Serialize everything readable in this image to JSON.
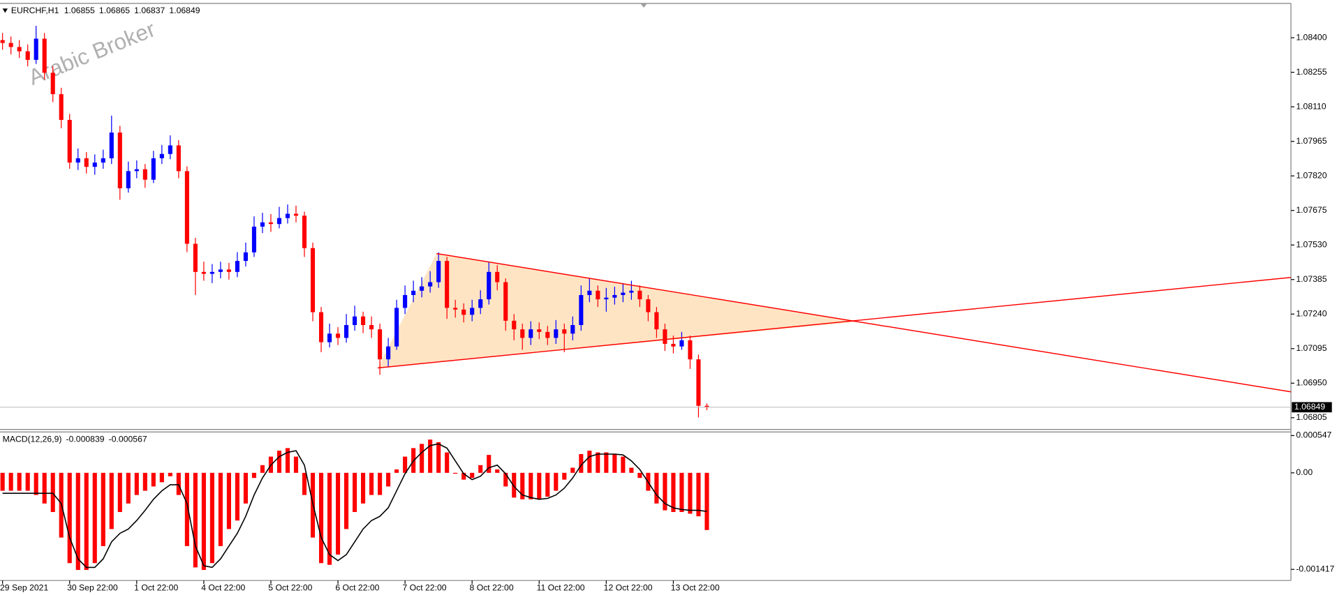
{
  "chart_data": [
    {
      "type": "candlestick",
      "symbol": "EURCHF,H1",
      "watermark": "Arabic Broker",
      "up_color": "#0000ff",
      "down_color": "#ff0000",
      "last_price_color": "#c0c0c0",
      "ylim": [
        1.06756,
        1.08544
      ],
      "yticks": [
        {
          "value": 1.084,
          "label": "1.08400"
        },
        1.08255,
        {
          "value": 1.0811,
          "label": "1.08110"
        },
        1.07965,
        {
          "value": 1.0782,
          "label": "1.07820"
        },
        1.07675,
        {
          "value": 1.0753,
          "label": "1.07530"
        },
        1.07385,
        {
          "value": 1.0724,
          "label": "1.07240"
        },
        1.07095,
        {
          "value": 1.0695,
          "label": "1.06950"
        },
        1.06805
      ],
      "categories": [
        "29 Sep 2021",
        null,
        null,
        null,
        null,
        null,
        null,
        null,
        "30 Sep 22:00",
        null,
        null,
        null,
        null,
        null,
        null,
        null,
        "1 Oct 22:00",
        null,
        null,
        null,
        null,
        null,
        null,
        null,
        "4 Oct 22:00",
        null,
        null,
        null,
        null,
        null,
        null,
        null,
        "5 Oct 22:00",
        null,
        null,
        null,
        null,
        null,
        null,
        null,
        "6 Oct 22:00",
        null,
        null,
        null,
        null,
        null,
        null,
        null,
        "7 Oct 22:00",
        null,
        null,
        null,
        null,
        null,
        null,
        null,
        "8 Oct 22:00",
        null,
        null,
        null,
        null,
        null,
        null,
        null,
        "11 Oct 22:00",
        null,
        null,
        null,
        null,
        null,
        null,
        null,
        "12 Oct 22:00",
        null,
        null,
        null,
        null,
        null,
        null,
        null,
        "13 Oct 22:00",
        null,
        null,
        null,
        null
      ],
      "ohlc": [
        [
          1.0839,
          1.0842,
          1.0835,
          1.08378
        ],
        [
          1.08378,
          1.08405,
          1.0833,
          1.08361
        ],
        [
          1.08361,
          1.0839,
          1.08315,
          1.08343
        ],
        [
          1.08343,
          1.08372,
          1.0828,
          1.08307
        ],
        [
          1.08307,
          1.0845,
          1.0829,
          1.08396
        ],
        [
          1.08396,
          1.0842,
          1.08225,
          1.08253
        ],
        [
          1.08253,
          1.0828,
          1.0813,
          1.08163
        ],
        [
          1.08163,
          1.0819,
          1.0802,
          1.08055
        ],
        [
          1.08055,
          1.0808,
          1.0785,
          1.07876
        ],
        [
          1.07876,
          1.07935,
          1.07845,
          1.07894
        ],
        [
          1.07894,
          1.0792,
          1.0783,
          1.07858
        ],
        [
          1.07858,
          1.0791,
          1.07825,
          1.07876
        ],
        [
          1.07876,
          1.0793,
          1.0785,
          1.07894
        ],
        [
          1.07894,
          1.08073,
          1.0787,
          1.08002
        ],
        [
          1.08002,
          1.0803,
          1.0772,
          1.07768
        ],
        [
          1.07768,
          1.0788,
          1.0775,
          1.0784
        ],
        [
          1.0784,
          1.07885,
          1.0781,
          1.07848
        ],
        [
          1.07848,
          1.0787,
          1.0777,
          1.07804
        ],
        [
          1.07804,
          1.07925,
          1.0779,
          1.07894
        ],
        [
          1.07894,
          1.0795,
          1.0787,
          1.07912
        ],
        [
          1.07912,
          1.0799,
          1.0789,
          1.07948
        ],
        [
          1.07948,
          1.0797,
          1.0781,
          1.0784
        ],
        [
          1.0784,
          1.0786,
          1.075,
          1.07535
        ],
        [
          1.07535,
          1.0756,
          1.0732,
          1.07417
        ],
        [
          1.07417,
          1.0746,
          1.0738,
          1.07409
        ],
        [
          1.07409,
          1.0745,
          1.0737,
          1.07417
        ],
        [
          1.07417,
          1.0746,
          1.0739,
          1.07427
        ],
        [
          1.07427,
          1.07455,
          1.07385,
          1.07417
        ],
        [
          1.07417,
          1.075,
          1.07395,
          1.07463
        ],
        [
          1.07463,
          1.0754,
          1.0744,
          1.07499
        ],
        [
          1.07499,
          1.0765,
          1.0748,
          1.07607
        ],
        [
          1.07607,
          1.07665,
          1.0758,
          1.07625
        ],
        [
          1.07625,
          1.0766,
          1.07585,
          1.07618
        ],
        [
          1.07618,
          1.0769,
          1.076,
          1.07643
        ],
        [
          1.07643,
          1.077,
          1.0762,
          1.07661
        ],
        [
          1.07661,
          1.07695,
          1.07625,
          1.07653
        ],
        [
          1.07653,
          1.0767,
          1.0748,
          1.07517
        ],
        [
          1.07517,
          1.0754,
          1.0721,
          1.07248
        ],
        [
          1.07248,
          1.0727,
          1.0708,
          1.07122
        ],
        [
          1.07122,
          1.072,
          1.071,
          1.07158
        ],
        [
          1.07158,
          1.07185,
          1.0711,
          1.0714
        ],
        [
          1.0714,
          1.0724,
          1.0712,
          1.07194
        ],
        [
          1.07194,
          1.07275,
          1.0717,
          1.0723
        ],
        [
          1.0723,
          1.0725,
          1.0716,
          1.07194
        ],
        [
          1.07194,
          1.0723,
          1.0714,
          1.07176
        ],
        [
          1.07176,
          1.072,
          1.06985,
          1.0705
        ],
        [
          1.0705,
          1.0714,
          1.0702,
          1.07104
        ],
        [
          1.07104,
          1.073,
          1.0709,
          1.07266
        ],
        [
          1.07266,
          1.0736,
          1.0724,
          1.0732
        ],
        [
          1.0732,
          1.0738,
          1.0729,
          1.07338
        ],
        [
          1.07338,
          1.07395,
          1.0731,
          1.07356
        ],
        [
          1.07356,
          1.0742,
          1.0733,
          1.07374
        ],
        [
          1.07374,
          1.07499,
          1.0735,
          1.07463
        ],
        [
          1.07463,
          1.0748,
          1.0722,
          1.07266
        ],
        [
          1.07266,
          1.073,
          1.07225,
          1.07259
        ],
        [
          1.07259,
          1.07285,
          1.07205,
          1.07237
        ],
        [
          1.07237,
          1.073,
          1.0721,
          1.07266
        ],
        [
          1.07266,
          1.0734,
          1.0724,
          1.07302
        ],
        [
          1.07302,
          1.0746,
          1.0728,
          1.07417
        ],
        [
          1.07417,
          1.07445,
          1.0734,
          1.07374
        ],
        [
          1.07374,
          1.0739,
          1.0717,
          1.07212
        ],
        [
          1.07212,
          1.0724,
          1.0713,
          1.07176
        ],
        [
          1.07176,
          1.072,
          1.0709,
          1.0714
        ],
        [
          1.0714,
          1.0721,
          1.0711,
          1.07176
        ],
        [
          1.07176,
          1.07205,
          1.07135,
          1.07165
        ],
        [
          1.07165,
          1.0719,
          1.0711,
          1.0714
        ],
        [
          1.0714,
          1.07215,
          1.07115,
          1.07176
        ],
        [
          1.07176,
          1.072,
          1.0708,
          1.07158
        ],
        [
          1.07158,
          1.0723,
          1.0713,
          1.07194
        ],
        [
          1.07194,
          1.0736,
          1.0717,
          1.0732
        ],
        [
          1.0732,
          1.0739,
          1.0729,
          1.07338
        ],
        [
          1.07338,
          1.0736,
          1.0727,
          1.07302
        ],
        [
          1.07302,
          1.0735,
          1.0725,
          1.07309
        ],
        [
          1.07309,
          1.07355,
          1.0728,
          1.0732
        ],
        [
          1.0732,
          1.0737,
          1.0729,
          1.0733
        ],
        [
          1.0733,
          1.0738,
          1.073,
          1.07338
        ],
        [
          1.07338,
          1.0736,
          1.0727,
          1.07302
        ],
        [
          1.07302,
          1.0732,
          1.0721,
          1.07248
        ],
        [
          1.07248,
          1.0727,
          1.0714,
          1.07176
        ],
        [
          1.07176,
          1.072,
          1.07085,
          1.07115
        ],
        [
          1.07115,
          1.0715,
          1.07075,
          1.07104
        ],
        [
          1.07104,
          1.07165,
          1.0709,
          1.0713
        ],
        [
          1.0713,
          1.0715,
          1.0701,
          1.0705
        ],
        [
          1.0705,
          1.0707,
          1.06806,
          1.06855
        ],
        [
          1.06855,
          1.06865,
          1.06837,
          1.06849
        ]
      ]
    },
    {
      "type": "bar",
      "title": "MACD(12,26,9)",
      "ylim": [
        -0.00158,
        0.0006
      ],
      "yticks": [
        0.000547,
        {
          "value": 0,
          "label": "0.00"
        },
        -0.001417
      ],
      "series": [
        {
          "type": "bar",
          "color": "#ff0000",
          "values": [
            -0.000263,
            -0.000263,
            -0.000263,
            -0.000263,
            -0.000325,
            -0.00045,
            -0.000575,
            -0.00095,
            -0.001325,
            -0.001425,
            -0.001425,
            -0.001325,
            -0.001075,
            -0.000825,
            -0.000575,
            -0.00045,
            -0.000325,
            -0.000263,
            -0.0002,
            -0.000138,
            -5e-05,
            -0.000325,
            -0.001075,
            -0.001388,
            -0.001425,
            -0.001325,
            -0.001075,
            -0.000825,
            -0.0007,
            -0.00045,
            -7.5e-05,
            0.000113,
            0.000238,
            0.000325,
            0.000363,
            0.000238,
            -0.000325,
            -0.00095,
            -0.001325,
            -0.00135,
            -0.0012,
            -0.000825,
            -0.000575,
            -0.00045,
            -0.000325,
            -0.000325,
            -0.0002,
            5e-05,
            0.000238,
            0.000363,
            0.000425,
            0.000488,
            0.00045,
            0.0003,
            -1.3e-05,
            -0.0001,
            -7.5e-05,
            0.000113,
            0.000263,
            5e-05,
            -0.0002,
            -0.000363,
            -0.000388,
            -0.000388,
            -0.000388,
            -0.00035,
            -0.000263,
            -0.0001,
            7.5e-05,
            0.000275,
            0.000325,
            0.0003,
            0.0003,
            0.000275,
            0.000238,
            7.5e-05,
            -7.5e-05,
            -0.000263,
            -0.00045,
            -0.00055,
            -0.000575,
            -0.000575,
            -0.0006,
            -0.000638,
            -0.000839
          ]
        },
        {
          "type": "line",
          "color": "#000000",
          "values": [
            -0.0003,
            -0.0003,
            -0.0003,
            -0.0003,
            -0.0003,
            -0.0003,
            -0.0003,
            -0.00045,
            -0.00095,
            -0.001263,
            -0.001388,
            -0.001388,
            -0.001263,
            -0.001013,
            -0.000888,
            -0.000825,
            -0.0007,
            -0.00055,
            -0.000388,
            -0.000263,
            -0.000175,
            -0.000175,
            -0.00045,
            -0.001075,
            -0.001363,
            -0.001388,
            -0.001263,
            -0.001075,
            -0.000888,
            -0.000638,
            -0.000325,
            -7.5e-05,
            0.000113,
            0.000238,
            0.0003,
            0.000325,
            0.000113,
            -0.00045,
            -0.00095,
            -0.0012,
            -0.001288,
            -0.0012,
            -0.001013,
            -0.000825,
            -0.0007,
            -0.000638,
            -0.000513,
            -0.000263,
            -1.3e-05,
            0.000175,
            0.0003,
            0.0004,
            0.000425,
            0.000363,
            0.000175,
            -1.3e-05,
            -0.0001,
            -5e-05,
            7.5e-05,
            0.000113,
            -1.3e-05,
            -0.0002,
            -0.000325,
            -0.000363,
            -0.000388,
            -0.000375,
            -0.000325,
            -0.000225,
            -7.5e-05,
            0.000113,
            0.000238,
            0.000275,
            0.000275,
            0.000275,
            0.000263,
            0.000175,
            5e-05,
            -0.000138,
            -0.000325,
            -0.00045,
            -0.000513,
            -0.000538,
            -0.00055,
            -0.00055,
            -0.000567
          ]
        }
      ]
    }
  ]
}
